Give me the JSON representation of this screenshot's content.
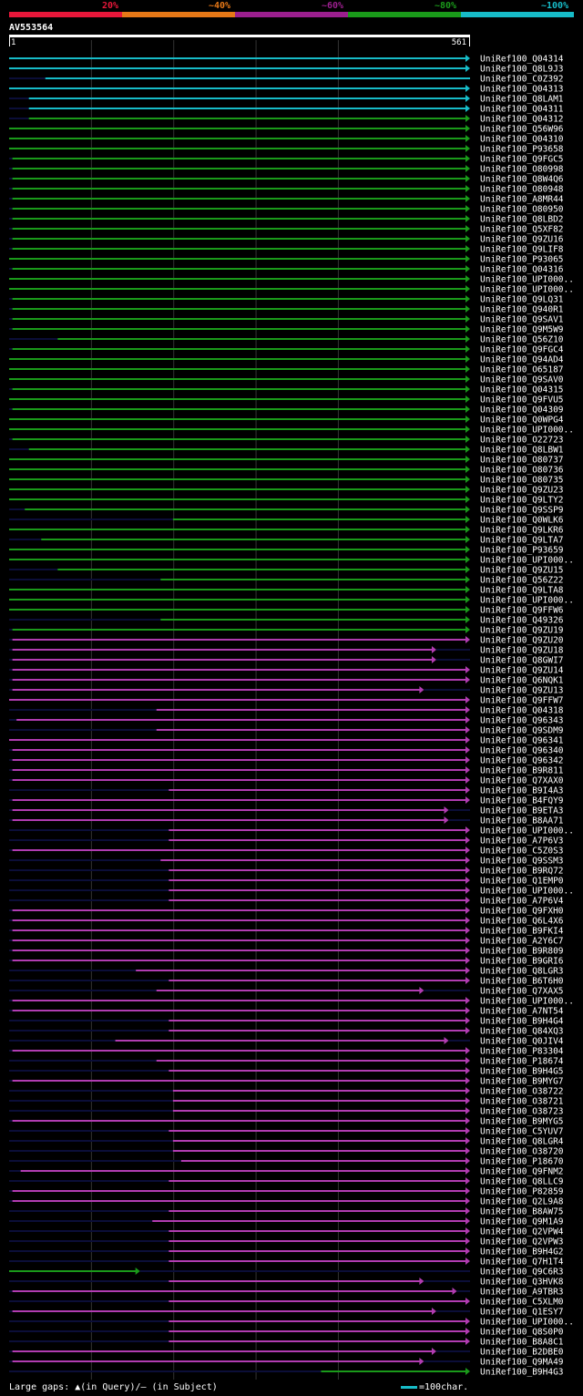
{
  "query": {
    "id": "AV553564",
    "start": "1",
    "end": "561",
    "length": 561
  },
  "legend": [
    {
      "label": "20%",
      "color": "#e8173a"
    },
    {
      "label": "~40%",
      "color": "#e67817"
    },
    {
      "label": "~60%",
      "color": "#9b1f8e"
    },
    {
      "label": "~80%",
      "color": "#1a9a1a"
    },
    {
      "label": "~100%",
      "color": "#17bcc8"
    }
  ],
  "colors": {
    "magenta": "#b13cb1",
    "dark": "#0b0e38",
    "marker": "#ffff99"
  },
  "footer": {
    "gaps": "Large gaps: ▲(in Query)/– (in Subject)",
    "scale": "=100char."
  },
  "chart_data": {
    "type": "alignment",
    "title": "AV553564",
    "x_range": [
      1,
      561
    ],
    "hits": [
      {
        "label": "UniRef100_Q04314",
        "color": "cyan",
        "start": 1,
        "end": 561,
        "arrow": true
      },
      {
        "label": "UniRef100_Q8L9J3",
        "color": "cyan",
        "start": 1,
        "end": 561,
        "arrow": true
      },
      {
        "label": "UniRef100_C0Z392",
        "color": "cyan",
        "start": 45,
        "end": 561,
        "arrow": false
      },
      {
        "label": "UniRef100_Q04313",
        "color": "cyan",
        "start": 1,
        "end": 561,
        "arrow": true
      },
      {
        "label": "UniRef100_Q8LAM1",
        "color": "cyan",
        "start": 25,
        "end": 561,
        "arrow": true
      },
      {
        "label": "UniRef100_Q04311",
        "color": "cyan",
        "start": 25,
        "end": 561,
        "arrow": true
      },
      {
        "label": "UniRef100_Q04312",
        "color": "green",
        "start": 25,
        "end": 561,
        "arrow": true
      },
      {
        "label": "UniRef100_Q56W96",
        "color": "green",
        "start": 1,
        "end": 561,
        "arrow": true
      },
      {
        "label": "UniRef100_Q04310",
        "color": "green",
        "start": 1,
        "end": 561,
        "arrow": true
      },
      {
        "label": "UniRef100_P93658",
        "color": "green",
        "start": 1,
        "end": 561,
        "arrow": true
      },
      {
        "label": "UniRef100_Q9FGC5",
        "color": "green",
        "start": 5,
        "end": 561,
        "arrow": true
      },
      {
        "label": "UniRef100_O80998",
        "color": "green",
        "start": 5,
        "end": 561,
        "arrow": true
      },
      {
        "label": "UniRef100_Q8W4Q6",
        "color": "green",
        "start": 5,
        "end": 561,
        "arrow": true
      },
      {
        "label": "UniRef100_O80948",
        "color": "green",
        "start": 5,
        "end": 561,
        "arrow": true
      },
      {
        "label": "UniRef100_A8MR44",
        "color": "green",
        "start": 5,
        "end": 561,
        "arrow": true
      },
      {
        "label": "UniRef100_O80950",
        "color": "green",
        "start": 5,
        "end": 561,
        "arrow": true
      },
      {
        "label": "UniRef100_Q8LBD2",
        "color": "green",
        "start": 5,
        "end": 561,
        "arrow": true
      },
      {
        "label": "UniRef100_Q5XF82",
        "color": "green",
        "start": 5,
        "end": 561,
        "arrow": true
      },
      {
        "label": "UniRef100_Q9ZU16",
        "color": "green",
        "start": 5,
        "end": 561,
        "arrow": true
      },
      {
        "label": "UniRef100_Q9LIF8",
        "color": "green",
        "start": 5,
        "end": 561,
        "arrow": true
      },
      {
        "label": "UniRef100_P93065",
        "color": "green",
        "start": 1,
        "end": 561,
        "arrow": true
      },
      {
        "label": "UniRef100_Q04316",
        "color": "green",
        "start": 5,
        "end": 561,
        "arrow": true
      },
      {
        "label": "UniRef100_UPI000..",
        "color": "green",
        "start": 1,
        "end": 561,
        "arrow": true
      },
      {
        "label": "UniRef100_UPI000..",
        "color": "green",
        "start": 1,
        "end": 561,
        "arrow": true
      },
      {
        "label": "UniRef100_Q9LQ31",
        "color": "green",
        "start": 5,
        "end": 561,
        "arrow": true
      },
      {
        "label": "UniRef100_Q940R1",
        "color": "green",
        "start": 5,
        "end": 561,
        "arrow": true
      },
      {
        "label": "UniRef100_Q9SAV1",
        "color": "green",
        "start": 5,
        "end": 561,
        "arrow": true
      },
      {
        "label": "UniRef100_Q9M5W9",
        "color": "green",
        "start": 5,
        "end": 561,
        "arrow": true
      },
      {
        "label": "UniRef100_Q56Z10",
        "color": "green",
        "start": 60,
        "end": 561,
        "arrow": true
      },
      {
        "label": "UniRef100_Q9FGC4",
        "color": "green",
        "start": 5,
        "end": 561,
        "arrow": true
      },
      {
        "label": "UniRef100_Q94AD4",
        "color": "green",
        "start": 1,
        "end": 561,
        "arrow": true
      },
      {
        "label": "UniRef100_O65187",
        "color": "green",
        "start": 1,
        "end": 561,
        "arrow": true
      },
      {
        "label": "UniRef100_Q9SAV0",
        "color": "green",
        "start": 1,
        "end": 561,
        "arrow": true
      },
      {
        "label": "UniRef100_Q04315",
        "color": "green",
        "start": 5,
        "end": 561,
        "arrow": true
      },
      {
        "label": "UniRef100_Q9FVU5",
        "color": "green",
        "start": 1,
        "end": 561,
        "arrow": true
      },
      {
        "label": "UniRef100_Q04309",
        "color": "green",
        "start": 5,
        "end": 561,
        "arrow": true
      },
      {
        "label": "UniRef100_Q0WPG4",
        "color": "green",
        "start": 1,
        "end": 561,
        "arrow": true
      },
      {
        "label": "UniRef100_UPI000..",
        "color": "green",
        "start": 1,
        "end": 561,
        "arrow": true
      },
      {
        "label": "UniRef100_O22723",
        "color": "green",
        "start": 5,
        "end": 561,
        "arrow": true
      },
      {
        "label": "UniRef100_Q8LBW1",
        "color": "green",
        "start": 25,
        "end": 561,
        "arrow": true
      },
      {
        "label": "UniRef100_O80737",
        "color": "green",
        "start": 1,
        "end": 561,
        "arrow": true
      },
      {
        "label": "UniRef100_O80736",
        "color": "green",
        "start": 1,
        "end": 561,
        "arrow": true
      },
      {
        "label": "UniRef100_O80735",
        "color": "green",
        "start": 1,
        "end": 561,
        "arrow": true
      },
      {
        "label": "UniRef100_Q9ZU23",
        "color": "green",
        "start": 1,
        "end": 561,
        "arrow": true
      },
      {
        "label": "UniRef100_Q9LTY2",
        "color": "green",
        "start": 1,
        "end": 561,
        "arrow": true
      },
      {
        "label": "UniRef100_Q9SSP9",
        "color": "green",
        "start": 20,
        "end": 561,
        "arrow": true
      },
      {
        "label": "UniRef100_Q0WLK6",
        "color": "green",
        "start": 200,
        "end": 561,
        "arrow": true
      },
      {
        "label": "UniRef100_Q9LKR6",
        "color": "green",
        "start": 1,
        "end": 561,
        "arrow": true
      },
      {
        "label": "UniRef100_Q9LTA7",
        "color": "green",
        "start": 40,
        "end": 561,
        "arrow": true
      },
      {
        "label": "UniRef100_P93659",
        "color": "green",
        "start": 1,
        "end": 561,
        "arrow": true
      },
      {
        "label": "UniRef100_UPI000..",
        "color": "green",
        "start": 1,
        "end": 561,
        "arrow": true
      },
      {
        "label": "UniRef100_Q9ZU15",
        "color": "green",
        "start": 60,
        "end": 561,
        "arrow": true
      },
      {
        "label": "UniRef100_Q56Z22",
        "color": "green",
        "start": 185,
        "end": 561,
        "arrow": true
      },
      {
        "label": "UniRef100_Q9LTA8",
        "color": "green",
        "start": 1,
        "end": 561,
        "arrow": true
      },
      {
        "label": "UniRef100_UPI000..",
        "color": "green",
        "start": 1,
        "end": 561,
        "arrow": true
      },
      {
        "label": "UniRef100_Q9FFW6",
        "color": "green",
        "start": 1,
        "end": 561,
        "arrow": true
      },
      {
        "label": "UniRef100_Q49326",
        "color": "green",
        "start": 185,
        "end": 561,
        "arrow": true
      },
      {
        "label": "UniRef100_Q9ZU19",
        "color": "green",
        "start": 5,
        "end": 561,
        "arrow": true
      },
      {
        "label": "UniRef100_Q9ZU20",
        "color": "magenta",
        "start": 5,
        "end": 561,
        "arrow": true
      },
      {
        "label": "UniRef100_Q9ZU18",
        "color": "magenta",
        "start": 5,
        "end": 520,
        "arrow": true
      },
      {
        "label": "UniRef100_Q8GWI7",
        "color": "magenta",
        "start": 5,
        "end": 520,
        "arrow": true
      },
      {
        "label": "UniRef100_Q9ZU14",
        "color": "magenta",
        "start": 5,
        "end": 561,
        "arrow": true
      },
      {
        "label": "UniRef100_Q6NQK1",
        "color": "magenta",
        "start": 5,
        "end": 561,
        "arrow": true
      },
      {
        "label": "UniRef100_Q9ZU13",
        "color": "magenta",
        "start": 5,
        "end": 505,
        "arrow": true
      },
      {
        "label": "UniRef100_Q9FFW7",
        "color": "magenta",
        "start": 1,
        "end": 561,
        "arrow": true
      },
      {
        "label": "UniRef100_Q04318",
        "color": "magenta",
        "start": 180,
        "end": 561,
        "arrow": true
      },
      {
        "label": "UniRef100_Q96343",
        "color": "magenta",
        "start": 10,
        "end": 561,
        "arrow": true
      },
      {
        "label": "UniRef100_Q9SDM9",
        "color": "magenta",
        "start": 180,
        "end": 561,
        "arrow": true
      },
      {
        "label": "UniRef100_Q96341",
        "color": "magenta",
        "start": 1,
        "end": 561,
        "arrow": true
      },
      {
        "label": "UniRef100_Q96340",
        "color": "magenta",
        "start": 5,
        "end": 561,
        "arrow": true
      },
      {
        "label": "UniRef100_Q96342",
        "color": "magenta",
        "start": 5,
        "end": 561,
        "arrow": true
      },
      {
        "label": "UniRef100_B9R811",
        "color": "magenta",
        "start": 5,
        "end": 561,
        "arrow": true
      },
      {
        "label": "UniRef100_Q7XAX0",
        "color": "magenta",
        "start": 5,
        "end": 561,
        "arrow": true
      },
      {
        "label": "UniRef100_B9I4A3",
        "color": "magenta",
        "start": 195,
        "end": 561,
        "arrow": true
      },
      {
        "label": "UniRef100_B4FQY9",
        "color": "magenta",
        "start": 5,
        "end": 561,
        "arrow": true
      },
      {
        "label": "UniRef100_B9ETA3",
        "color": "magenta",
        "start": 5,
        "end": 535,
        "arrow": true
      },
      {
        "label": "UniRef100_B8AA71",
        "color": "magenta",
        "start": 5,
        "end": 535,
        "arrow": true
      },
      {
        "label": "UniRef100_UPI000..",
        "color": "magenta",
        "start": 195,
        "end": 561,
        "arrow": true
      },
      {
        "label": "UniRef100_A7P6V3",
        "color": "magenta",
        "start": 195,
        "end": 561,
        "arrow": true
      },
      {
        "label": "UniRef100_C5Z0S3",
        "color": "magenta",
        "start": 5,
        "end": 561,
        "arrow": true
      },
      {
        "label": "UniRef100_Q9SSM3",
        "color": "magenta",
        "start": 185,
        "end": 561,
        "arrow": true
      },
      {
        "label": "UniRef100_B9RQ72",
        "color": "magenta",
        "start": 195,
        "end": 561,
        "arrow": true
      },
      {
        "label": "UniRef100_Q1EMP0",
        "color": "magenta",
        "start": 195,
        "end": 561,
        "arrow": true
      },
      {
        "label": "UniRef100_UPI000..",
        "color": "magenta",
        "start": 195,
        "end": 561,
        "arrow": true
      },
      {
        "label": "UniRef100_A7P6V4",
        "color": "magenta",
        "start": 195,
        "end": 561,
        "arrow": true
      },
      {
        "label": "UniRef100_Q9FXH0",
        "color": "magenta",
        "start": 5,
        "end": 561,
        "arrow": true
      },
      {
        "label": "UniRef100_Q6L4X6",
        "color": "magenta",
        "start": 5,
        "end": 561,
        "arrow": true
      },
      {
        "label": "UniRef100_B9FKI4",
        "color": "magenta",
        "start": 5,
        "end": 561,
        "arrow": true
      },
      {
        "label": "UniRef100_A2Y6C7",
        "color": "magenta",
        "start": 5,
        "end": 561,
        "arrow": true
      },
      {
        "label": "UniRef100_B9R809",
        "color": "magenta",
        "start": 5,
        "end": 561,
        "arrow": true
      },
      {
        "label": "UniRef100_B9GRI6",
        "color": "magenta",
        "start": 5,
        "end": 561,
        "arrow": true
      },
      {
        "label": "UniRef100_Q8LGR3",
        "color": "magenta",
        "start": 155,
        "end": 561,
        "arrow": true
      },
      {
        "label": "UniRef100_B6T6H0",
        "color": "magenta",
        "start": 195,
        "end": 561,
        "arrow": true
      },
      {
        "label": "UniRef100_Q7XAX5",
        "color": "magenta",
        "start": 180,
        "end": 505,
        "arrow": true
      },
      {
        "label": "UniRef100_UPI000..",
        "color": "magenta",
        "start": 5,
        "end": 561,
        "arrow": true
      },
      {
        "label": "UniRef100_A7NT54",
        "color": "magenta",
        "start": 5,
        "end": 561,
        "arrow": true
      },
      {
        "label": "UniRef100_B9H4G4",
        "color": "magenta",
        "start": 195,
        "end": 561,
        "arrow": true
      },
      {
        "label": "UniRef100_Q84XQ3",
        "color": "magenta",
        "start": 195,
        "end": 561,
        "arrow": true
      },
      {
        "label": "UniRef100_Q0JIV4",
        "color": "magenta",
        "start": 130,
        "end": 535,
        "arrow": true
      },
      {
        "label": "UniRef100_P83304",
        "color": "magenta",
        "start": 5,
        "end": 561,
        "arrow": true
      },
      {
        "label": "UniRef100_P18674",
        "color": "magenta",
        "start": 180,
        "end": 561,
        "arrow": true
      },
      {
        "label": "UniRef100_B9H4G5",
        "color": "magenta",
        "start": 195,
        "end": 561,
        "arrow": true
      },
      {
        "label": "UniRef100_B9MYG7",
        "color": "magenta",
        "start": 5,
        "end": 561,
        "arrow": true
      },
      {
        "label": "UniRef100_O38722",
        "color": "magenta",
        "start": 200,
        "end": 561,
        "arrow": true
      },
      {
        "label": "UniRef100_O38721",
        "color": "magenta",
        "start": 200,
        "end": 561,
        "arrow": true
      },
      {
        "label": "UniRef100_O38723",
        "color": "magenta",
        "start": 200,
        "end": 561,
        "arrow": true
      },
      {
        "label": "UniRef100_B9MYG5",
        "color": "magenta",
        "start": 5,
        "end": 561,
        "arrow": true
      },
      {
        "label": "UniRef100_C5YUV7",
        "color": "magenta",
        "start": 195,
        "end": 561,
        "arrow": true
      },
      {
        "label": "UniRef100_Q8LGR4",
        "color": "magenta",
        "start": 200,
        "end": 561,
        "arrow": true
      },
      {
        "label": "UniRef100_O38720",
        "color": "magenta",
        "start": 200,
        "end": 561,
        "arrow": true
      },
      {
        "label": "UniRef100_P18670",
        "color": "magenta",
        "start": 210,
        "end": 561,
        "arrow": true
      },
      {
        "label": "UniRef100_Q9FNM2",
        "color": "magenta",
        "start": 15,
        "end": 561,
        "arrow": true
      },
      {
        "label": "UniRef100_Q8LLC9",
        "color": "magenta",
        "start": 195,
        "end": 561,
        "arrow": true
      },
      {
        "label": "UniRef100_P82859",
        "color": "magenta",
        "start": 5,
        "end": 561,
        "arrow": true
      },
      {
        "label": "UniRef100_Q2L9A8",
        "color": "magenta",
        "start": 5,
        "end": 561,
        "arrow": true
      },
      {
        "label": "UniRef100_B8AW75",
        "color": "magenta",
        "start": 195,
        "end": 561,
        "arrow": true
      },
      {
        "label": "UniRef100_Q9M1A9",
        "color": "magenta",
        "start": 175,
        "end": 561,
        "arrow": true
      },
      {
        "label": "UniRef100_Q2VPW4",
        "color": "magenta",
        "start": 195,
        "end": 561,
        "arrow": true
      },
      {
        "label": "UniRef100_Q2VPW3",
        "color": "magenta",
        "start": 195,
        "end": 561,
        "arrow": true
      },
      {
        "label": "UniRef100_B9H4G2",
        "color": "magenta",
        "start": 195,
        "end": 561,
        "arrow": true
      },
      {
        "label": "UniRef100_Q7H1T4",
        "color": "magenta",
        "start": 195,
        "end": 561,
        "arrow": true
      },
      {
        "label": "UniRef100_Q9C6R3",
        "color": "green",
        "start": 1,
        "end": 160,
        "arrow": true
      },
      {
        "label": "UniRef100_Q3HVK8",
        "color": "magenta",
        "start": 195,
        "end": 505,
        "arrow": true
      },
      {
        "label": "UniRef100_A9TBR3",
        "color": "magenta",
        "start": 5,
        "end": 545,
        "arrow": true
      },
      {
        "label": "UniRef100_C5XLM0",
        "color": "magenta",
        "start": 195,
        "end": 561,
        "arrow": true
      },
      {
        "label": "UniRef100_Q1ESY7",
        "color": "magenta",
        "start": 5,
        "end": 520,
        "arrow": true
      },
      {
        "label": "UniRef100_UPI000..",
        "color": "magenta",
        "start": 195,
        "end": 561,
        "arrow": true
      },
      {
        "label": "UniRef100_Q8S0P0",
        "color": "magenta",
        "start": 195,
        "end": 561,
        "arrow": true
      },
      {
        "label": "UniRef100_B8A8C1",
        "color": "magenta",
        "start": 195,
        "end": 561,
        "arrow": true
      },
      {
        "label": "UniRef100_B2DBE0",
        "color": "magenta",
        "start": 5,
        "end": 520,
        "arrow": true
      },
      {
        "label": "UniRef100_Q9MA49",
        "color": "magenta",
        "start": 5,
        "end": 505,
        "arrow": true
      },
      {
        "label": "UniRef100_B9H4G3",
        "color": "green",
        "start": 380,
        "end": 561,
        "arrow": true
      }
    ]
  }
}
